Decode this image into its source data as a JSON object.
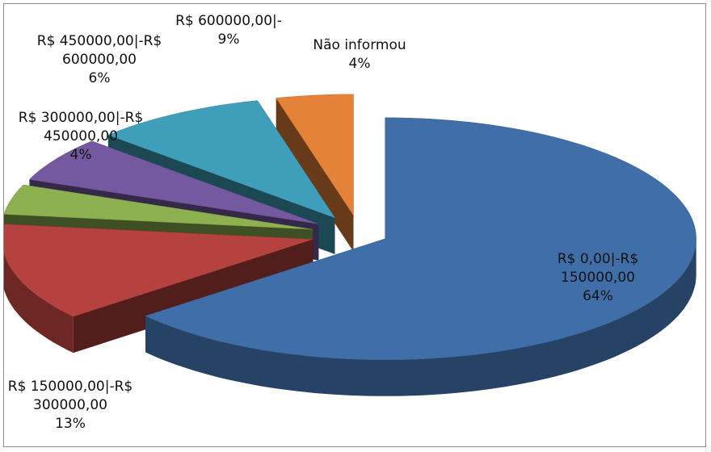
{
  "chart_data": {
    "type": "pie",
    "three_d": true,
    "exploded": true,
    "categories": [
      "R$ 0,00|-R$ 150000,00",
      "R$ 150000,00|-R$ 300000,00",
      "R$ 300000,00|-R$ 450000,00",
      "R$ 450000,00|-R$ 600000,00",
      "R$ 600000,00|-",
      "Não informou"
    ],
    "values": [
      64,
      13,
      4,
      6,
      9,
      4
    ],
    "value_labels": [
      "64%",
      "13%",
      "4%",
      "6%",
      "9%",
      "4%"
    ],
    "colors": [
      "#3f6ea9",
      "#b5423f",
      "#8db050",
      "#7559a0",
      "#3f9fba",
      "#e5823a"
    ]
  }
}
